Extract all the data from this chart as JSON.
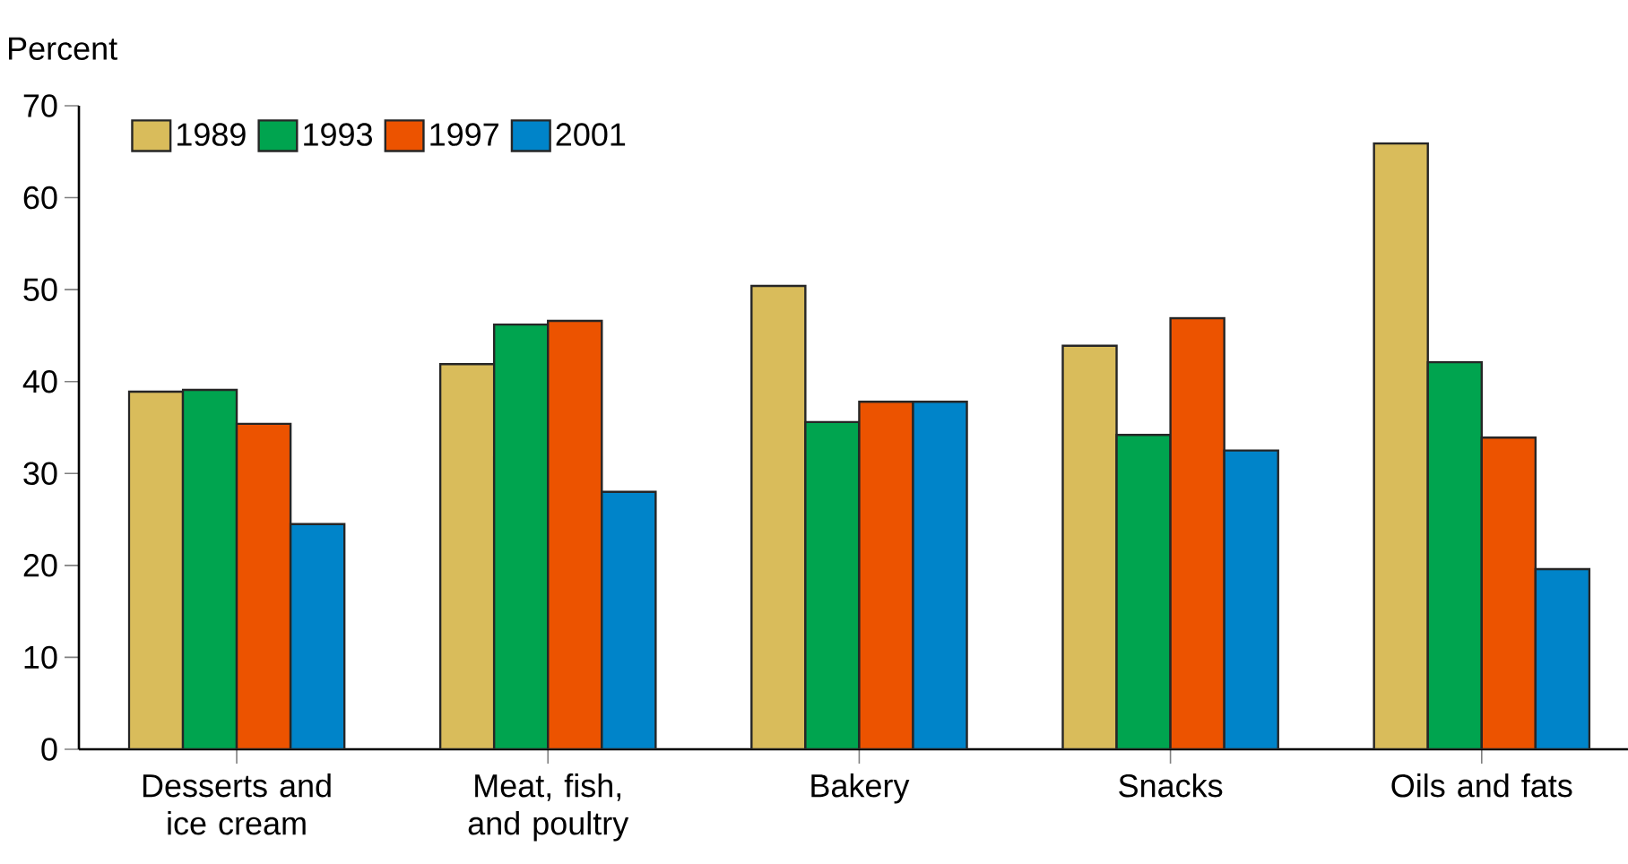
{
  "chart_data": {
    "type": "bar",
    "ylabel": "Percent",
    "categories": [
      "Desserts and ice cream",
      "Meat, fish, and poultry",
      "Bakery",
      "Snacks",
      "Oils and fats"
    ],
    "series": [
      {
        "name": "1989",
        "color": "#d9bc5b",
        "values": [
          38.9,
          41.9,
          50.4,
          43.9,
          65.9
        ]
      },
      {
        "name": "1993",
        "color": "#00a44f",
        "values": [
          39.1,
          46.2,
          35.6,
          34.2,
          42.1
        ]
      },
      {
        "name": "1997",
        "color": "#ec5300",
        "values": [
          35.4,
          46.6,
          37.8,
          46.9,
          33.9
        ]
      },
      {
        "name": "2001",
        "color": "#0084c9",
        "values": [
          24.5,
          28.0,
          37.8,
          32.5,
          19.6
        ]
      }
    ],
    "ylim": [
      0,
      70
    ],
    "yticks": [
      0,
      10,
      20,
      30,
      40,
      50,
      60,
      70
    ],
    "legend": "top left",
    "grid": false
  }
}
